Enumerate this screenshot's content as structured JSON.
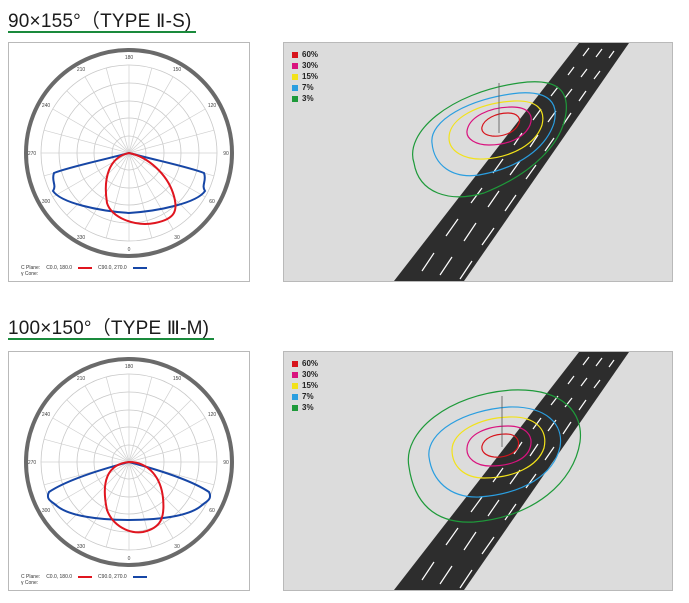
{
  "diagrams": [
    {
      "title": "90×155°（TYPE Ⅱ-S)",
      "polar": {
        "angle_labels": [
          "180",
          "150",
          "120",
          "90",
          "60",
          "30",
          "0",
          "330",
          "300",
          "270",
          "240",
          "210"
        ],
        "legend_plane_label": "C Plane:",
        "legend_gamma_label": "γ Cone:",
        "series": [
          {
            "name": "C0.0, 180.0",
            "color": "#e0151f"
          },
          {
            "name": "C90.0, 270.0",
            "color": "#1646a6"
          }
        ]
      },
      "isolux_legend": [
        {
          "label": "60%",
          "color": "#d7141c"
        },
        {
          "label": "30%",
          "color": "#d9127e"
        },
        {
          "label": "15%",
          "color": "#f2e21a"
        },
        {
          "label": "7%",
          "color": "#2a9ee0"
        },
        {
          "label": "3%",
          "color": "#1e9a3a"
        }
      ]
    },
    {
      "title": "100×150°（TYPE Ⅲ-M)",
      "polar": {
        "angle_labels": [
          "180",
          "150",
          "120",
          "90",
          "60",
          "30",
          "0",
          "330",
          "300",
          "270",
          "240",
          "210"
        ],
        "legend_plane_label": "C Plane:",
        "legend_gamma_label": "γ Cone:",
        "series": [
          {
            "name": "C0.0, 180.0",
            "color": "#e0151f"
          },
          {
            "name": "C90.0, 270.0",
            "color": "#1646a6"
          }
        ]
      },
      "isolux_legend": [
        {
          "label": "60%",
          "color": "#d7141c"
        },
        {
          "label": "30%",
          "color": "#d9127e"
        },
        {
          "label": "15%",
          "color": "#f2e21a"
        },
        {
          "label": "7%",
          "color": "#2a9ee0"
        },
        {
          "label": "3%",
          "color": "#1e9a3a"
        }
      ]
    }
  ]
}
